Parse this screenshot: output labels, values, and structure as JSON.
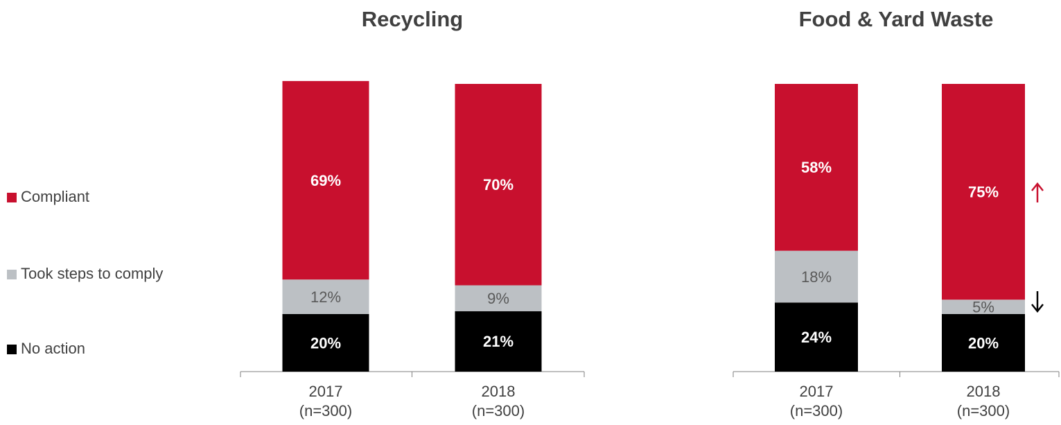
{
  "chart_data": [
    {
      "type": "bar",
      "stacked": true,
      "title": "Recycling",
      "categories": [
        "2017",
        "2018"
      ],
      "sample_sizes": [
        "(n=300)",
        "(n=300)"
      ],
      "ylim": [
        0,
        100
      ],
      "series": [
        {
          "name": "No action",
          "color": "#000000",
          "label_color": "#ffffff",
          "values": [
            20,
            21
          ],
          "value_labels": [
            "20%",
            "21%"
          ]
        },
        {
          "name": "Took steps to comply",
          "color": "#bcc0c4",
          "label_color": "#595959",
          "values": [
            12,
            9
          ],
          "value_labels": [
            "12%",
            "9%"
          ]
        },
        {
          "name": "Compliant",
          "color": "#c8102e",
          "label_color": "#ffffff",
          "values": [
            69,
            70
          ],
          "value_labels": [
            "69%",
            "70%"
          ]
        }
      ]
    },
    {
      "type": "bar",
      "stacked": true,
      "title": "Food & Yard Waste",
      "categories": [
        "2017",
        "2018"
      ],
      "sample_sizes": [
        "(n=300)",
        "(n=300)"
      ],
      "ylim": [
        0,
        100
      ],
      "series": [
        {
          "color": "#000000",
          "label_color": "#ffffff",
          "values": [
            24,
            20
          ],
          "value_labels": [
            "24%",
            "20%"
          ]
        },
        {
          "color": "#bcc0c4",
          "label_color": "#595959",
          "values": [
            18,
            5
          ],
          "value_labels": [
            "18%",
            "5%"
          ]
        },
        {
          "color": "#c8102e",
          "label_color": "#ffffff",
          "values": [
            58,
            75
          ],
          "value_labels": [
            "58%",
            "75%"
          ]
        }
      ]
    }
  ]
}
